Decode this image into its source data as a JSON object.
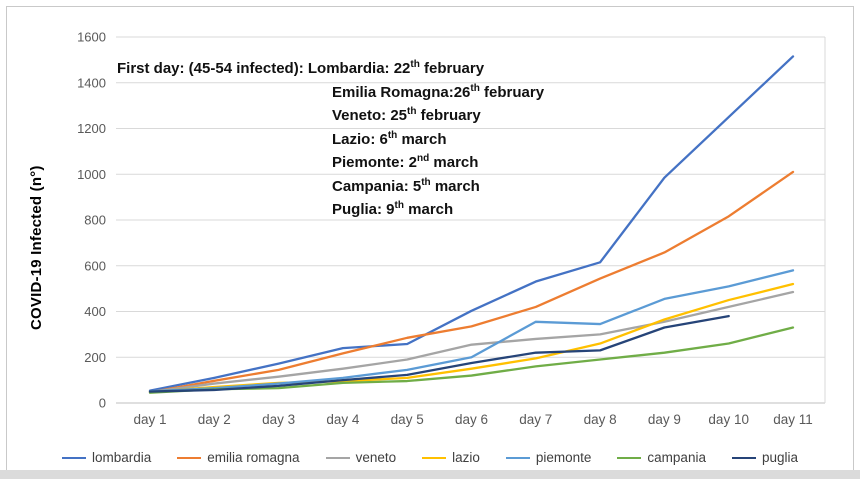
{
  "chart_data": {
    "type": "line",
    "title": "",
    "xlabel": "",
    "ylabel": "COVID-19 Infected (n°)",
    "ylim": [
      0,
      1600
    ],
    "yticks": [
      0,
      200,
      400,
      600,
      800,
      1000,
      1200,
      1400,
      1600
    ],
    "grid": true,
    "legend_position": "bottom",
    "categories": [
      "day 1",
      "day 2",
      "day 3",
      "day 4",
      "day 5",
      "day 6",
      "day 7",
      "day 8",
      "day 9",
      "day 10",
      "day 11"
    ],
    "series": [
      {
        "name": "lombardia",
        "color": "#4472C4",
        "values": [
          54,
          110,
          172,
          240,
          258,
          403,
          531,
          615,
          985,
          1250,
          1515
        ]
      },
      {
        "name": "emilia romagna",
        "color": "#ED7D31",
        "values": [
          47,
          97,
          145,
          217,
          285,
          335,
          420,
          544,
          658,
          816,
          1010
        ]
      },
      {
        "name": "veneto",
        "color": "#A5A5A5",
        "values": [
          48,
          85,
          115,
          150,
          190,
          255,
          280,
          300,
          355,
          420,
          485
        ]
      },
      {
        "name": "lazio",
        "color": "#FFC000",
        "values": [
          49,
          70,
          88,
          95,
          110,
          150,
          195,
          260,
          365,
          450,
          520
        ]
      },
      {
        "name": "piemonte",
        "color": "#5B9BD5",
        "values": [
          51,
          65,
          85,
          110,
          145,
          200,
          355,
          345,
          455,
          510,
          580
        ]
      },
      {
        "name": "campania",
        "color": "#70AD47",
        "values": [
          45,
          60,
          65,
          88,
          96,
          120,
          160,
          190,
          220,
          260,
          330
        ]
      },
      {
        "name": "puglia",
        "color": "#264478",
        "values": [
          50,
          57,
          75,
          100,
          123,
          175,
          220,
          230,
          330,
          380,
          null
        ]
      }
    ],
    "annotation": {
      "lines": [
        {
          "pre": "First day: (45-54 infected): Lombardia: 22",
          "sup": "th",
          "post": " february",
          "indent": false
        },
        {
          "pre": "Emilia Romagna:26",
          "sup": "th",
          "post": " february",
          "indent": true
        },
        {
          "pre": "Veneto: 25",
          "sup": "th",
          "post": " february",
          "indent": true
        },
        {
          "pre": "Lazio: 6",
          "sup": "th",
          "post": " march",
          "indent": true
        },
        {
          "pre": "Piemonte: 2",
          "sup": "nd",
          "post": " march",
          "indent": true
        },
        {
          "pre": "Campania: 5",
          "sup": "th",
          "post": " march",
          "indent": true
        },
        {
          "pre": "Puglia: 9",
          "sup": "th",
          "post": " march",
          "indent": true
        }
      ]
    },
    "colors": {
      "gridline": "#D9D9D9",
      "axis_line": "#BFBFBF",
      "tick_label": "#595959",
      "legend_text": "#404040"
    }
  }
}
